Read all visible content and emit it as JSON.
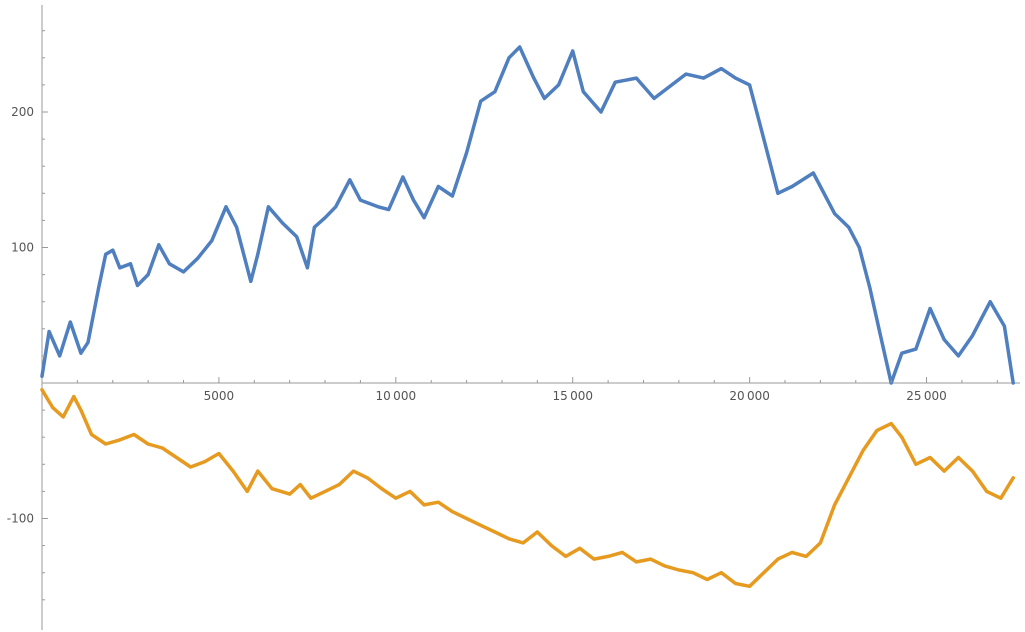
{
  "chart_data": {
    "type": "line",
    "title": "",
    "xlabel": "",
    "ylabel": "",
    "xlim": [
      0,
      27500
    ],
    "ylim": [
      -180,
      280
    ],
    "x_ticks": [
      5000,
      10000,
      15000,
      20000,
      25000
    ],
    "x_tick_labels": [
      "5000",
      "10 000",
      "15 000",
      "20 000",
      "25 000"
    ],
    "y_ticks": [
      -100,
      100,
      200
    ],
    "y_tick_labels": [
      "-100",
      "100",
      "200"
    ],
    "grid": false,
    "legend": "none",
    "series": [
      {
        "color": "#4f7fbf",
        "points": [
          [
            0,
            5
          ],
          [
            200,
            38
          ],
          [
            500,
            20
          ],
          [
            800,
            45
          ],
          [
            1100,
            22
          ],
          [
            1300,
            30
          ],
          [
            1600,
            70
          ],
          [
            1800,
            95
          ],
          [
            2000,
            98
          ],
          [
            2200,
            85
          ],
          [
            2500,
            88
          ],
          [
            2700,
            72
          ],
          [
            3000,
            80
          ],
          [
            3300,
            102
          ],
          [
            3600,
            88
          ],
          [
            4000,
            82
          ],
          [
            4400,
            92
          ],
          [
            4800,
            105
          ],
          [
            5200,
            130
          ],
          [
            5500,
            115
          ],
          [
            5900,
            75
          ],
          [
            6100,
            95
          ],
          [
            6400,
            130
          ],
          [
            6800,
            118
          ],
          [
            7200,
            108
          ],
          [
            7500,
            85
          ],
          [
            7700,
            115
          ],
          [
            8000,
            122
          ],
          [
            8300,
            130
          ],
          [
            8700,
            150
          ],
          [
            9000,
            135
          ],
          [
            9500,
            130
          ],
          [
            9800,
            128
          ],
          [
            10200,
            152
          ],
          [
            10500,
            135
          ],
          [
            10800,
            122
          ],
          [
            11200,
            145
          ],
          [
            11600,
            138
          ],
          [
            12000,
            170
          ],
          [
            12400,
            208
          ],
          [
            12800,
            215
          ],
          [
            13200,
            240
          ],
          [
            13500,
            248
          ],
          [
            13900,
            225
          ],
          [
            14200,
            210
          ],
          [
            14600,
            220
          ],
          [
            15000,
            245
          ],
          [
            15300,
            215
          ],
          [
            15800,
            200
          ],
          [
            16200,
            222
          ],
          [
            16800,
            225
          ],
          [
            17300,
            210
          ],
          [
            17800,
            220
          ],
          [
            18200,
            228
          ],
          [
            18700,
            225
          ],
          [
            19200,
            232
          ],
          [
            19600,
            225
          ],
          [
            20000,
            220
          ],
          [
            20300,
            190
          ],
          [
            20600,
            160
          ],
          [
            20800,
            140
          ],
          [
            21200,
            145
          ],
          [
            21800,
            155
          ],
          [
            22000,
            145
          ],
          [
            22400,
            125
          ],
          [
            22800,
            115
          ],
          [
            23100,
            100
          ],
          [
            23400,
            70
          ],
          [
            23700,
            35
          ],
          [
            24000,
            0
          ],
          [
            24300,
            22
          ],
          [
            24700,
            25
          ],
          [
            25100,
            55
          ],
          [
            25500,
            32
          ],
          [
            25900,
            20
          ],
          [
            26300,
            35
          ],
          [
            26800,
            60
          ],
          [
            27200,
            42
          ],
          [
            27450,
            0
          ]
        ]
      },
      {
        "color": "#e69a1f",
        "points": [
          [
            0,
            -5
          ],
          [
            300,
            -18
          ],
          [
            600,
            -25
          ],
          [
            900,
            -10
          ],
          [
            1100,
            -20
          ],
          [
            1400,
            -38
          ],
          [
            1800,
            -45
          ],
          [
            2200,
            -42
          ],
          [
            2600,
            -38
          ],
          [
            3000,
            -45
          ],
          [
            3400,
            -48
          ],
          [
            3800,
            -55
          ],
          [
            4200,
            -62
          ],
          [
            4600,
            -58
          ],
          [
            5000,
            -52
          ],
          [
            5400,
            -65
          ],
          [
            5800,
            -80
          ],
          [
            6100,
            -65
          ],
          [
            6500,
            -78
          ],
          [
            7000,
            -82
          ],
          [
            7300,
            -75
          ],
          [
            7600,
            -85
          ],
          [
            8000,
            -80
          ],
          [
            8400,
            -75
          ],
          [
            8800,
            -65
          ],
          [
            9200,
            -70
          ],
          [
            9600,
            -78
          ],
          [
            10000,
            -85
          ],
          [
            10400,
            -80
          ],
          [
            10800,
            -90
          ],
          [
            11200,
            -88
          ],
          [
            11600,
            -95
          ],
          [
            12000,
            -100
          ],
          [
            12400,
            -105
          ],
          [
            12800,
            -110
          ],
          [
            13200,
            -115
          ],
          [
            13600,
            -118
          ],
          [
            14000,
            -110
          ],
          [
            14400,
            -120
          ],
          [
            14800,
            -128
          ],
          [
            15200,
            -122
          ],
          [
            15600,
            -130
          ],
          [
            16000,
            -128
          ],
          [
            16400,
            -125
          ],
          [
            16800,
            -132
          ],
          [
            17200,
            -130
          ],
          [
            17600,
            -135
          ],
          [
            18000,
            -138
          ],
          [
            18400,
            -140
          ],
          [
            18800,
            -145
          ],
          [
            19200,
            -140
          ],
          [
            19600,
            -148
          ],
          [
            20000,
            -150
          ],
          [
            20400,
            -140
          ],
          [
            20800,
            -130
          ],
          [
            21200,
            -125
          ],
          [
            21600,
            -128
          ],
          [
            22000,
            -118
          ],
          [
            22400,
            -90
          ],
          [
            22800,
            -70
          ],
          [
            23200,
            -50
          ],
          [
            23600,
            -35
          ],
          [
            24000,
            -30
          ],
          [
            24300,
            -40
          ],
          [
            24700,
            -60
          ],
          [
            25100,
            -55
          ],
          [
            25500,
            -65
          ],
          [
            25900,
            -55
          ],
          [
            26300,
            -65
          ],
          [
            26700,
            -80
          ],
          [
            27100,
            -85
          ],
          [
            27450,
            -70
          ]
        ]
      }
    ]
  }
}
